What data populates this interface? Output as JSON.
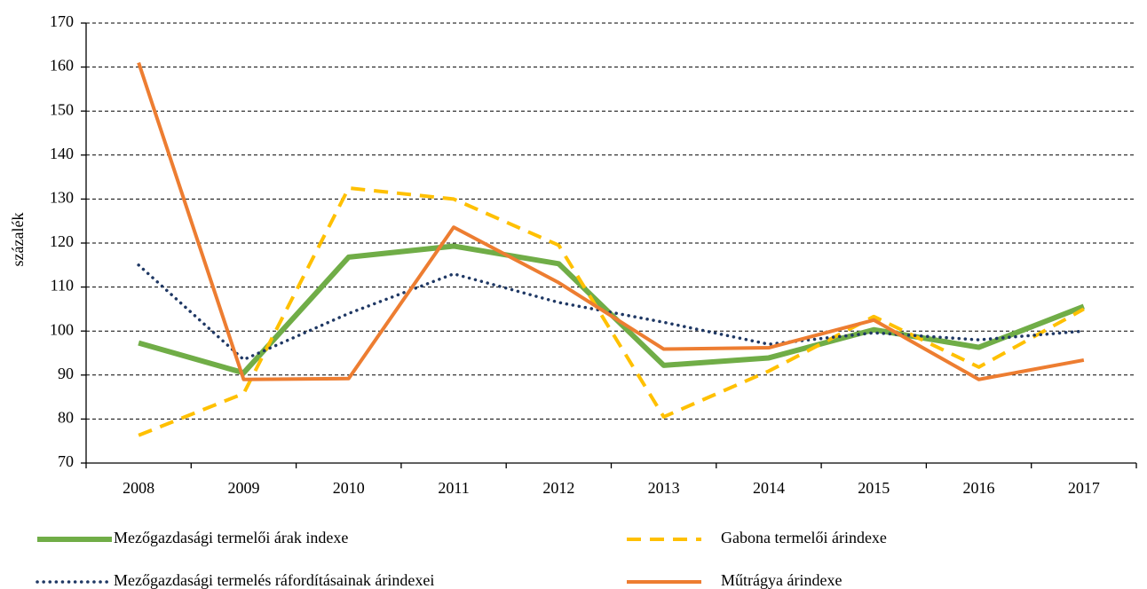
{
  "chart_data": {
    "type": "line",
    "ylabel": "százalék",
    "categories": [
      "2008",
      "2009",
      "2010",
      "2011",
      "2012",
      "2013",
      "2014",
      "2015",
      "2016",
      "2017"
    ],
    "series": [
      {
        "name": "Mezőgazdasági termelői árak indexe",
        "color": "#70ad47",
        "style": "solid",
        "values": [
          97.3,
          90.5,
          116.8,
          119.3,
          115.3,
          92.2,
          93.9,
          100.3,
          96.3,
          105.6
        ]
      },
      {
        "name": "Gabona termelői árindexe",
        "color": "#ffc000",
        "style": "dashed",
        "values": [
          76.3,
          85.8,
          132.5,
          130,
          119.5,
          80.5,
          90.9,
          103.3,
          91.8,
          105
        ]
      },
      {
        "name": "Mezőgazdasági termelés ráfordításainak árindexei",
        "color": "#1f3864",
        "style": "dotted",
        "values": [
          115,
          93.5,
          104,
          113,
          106.5,
          102,
          97,
          99.6,
          98,
          100
        ]
      },
      {
        "name": "Műtrágya árindexe",
        "color": "#ed7d31",
        "style": "solid-thin",
        "values": [
          161,
          89,
          89.2,
          123.6,
          111,
          95.9,
          96.2,
          102.5,
          89,
          93.4
        ]
      }
    ],
    "ylim": [
      70,
      170
    ],
    "yticks": [
      70,
      80,
      90,
      100,
      110,
      120,
      130,
      140,
      150,
      160,
      170
    ],
    "grid": true,
    "legend": "bottom"
  }
}
